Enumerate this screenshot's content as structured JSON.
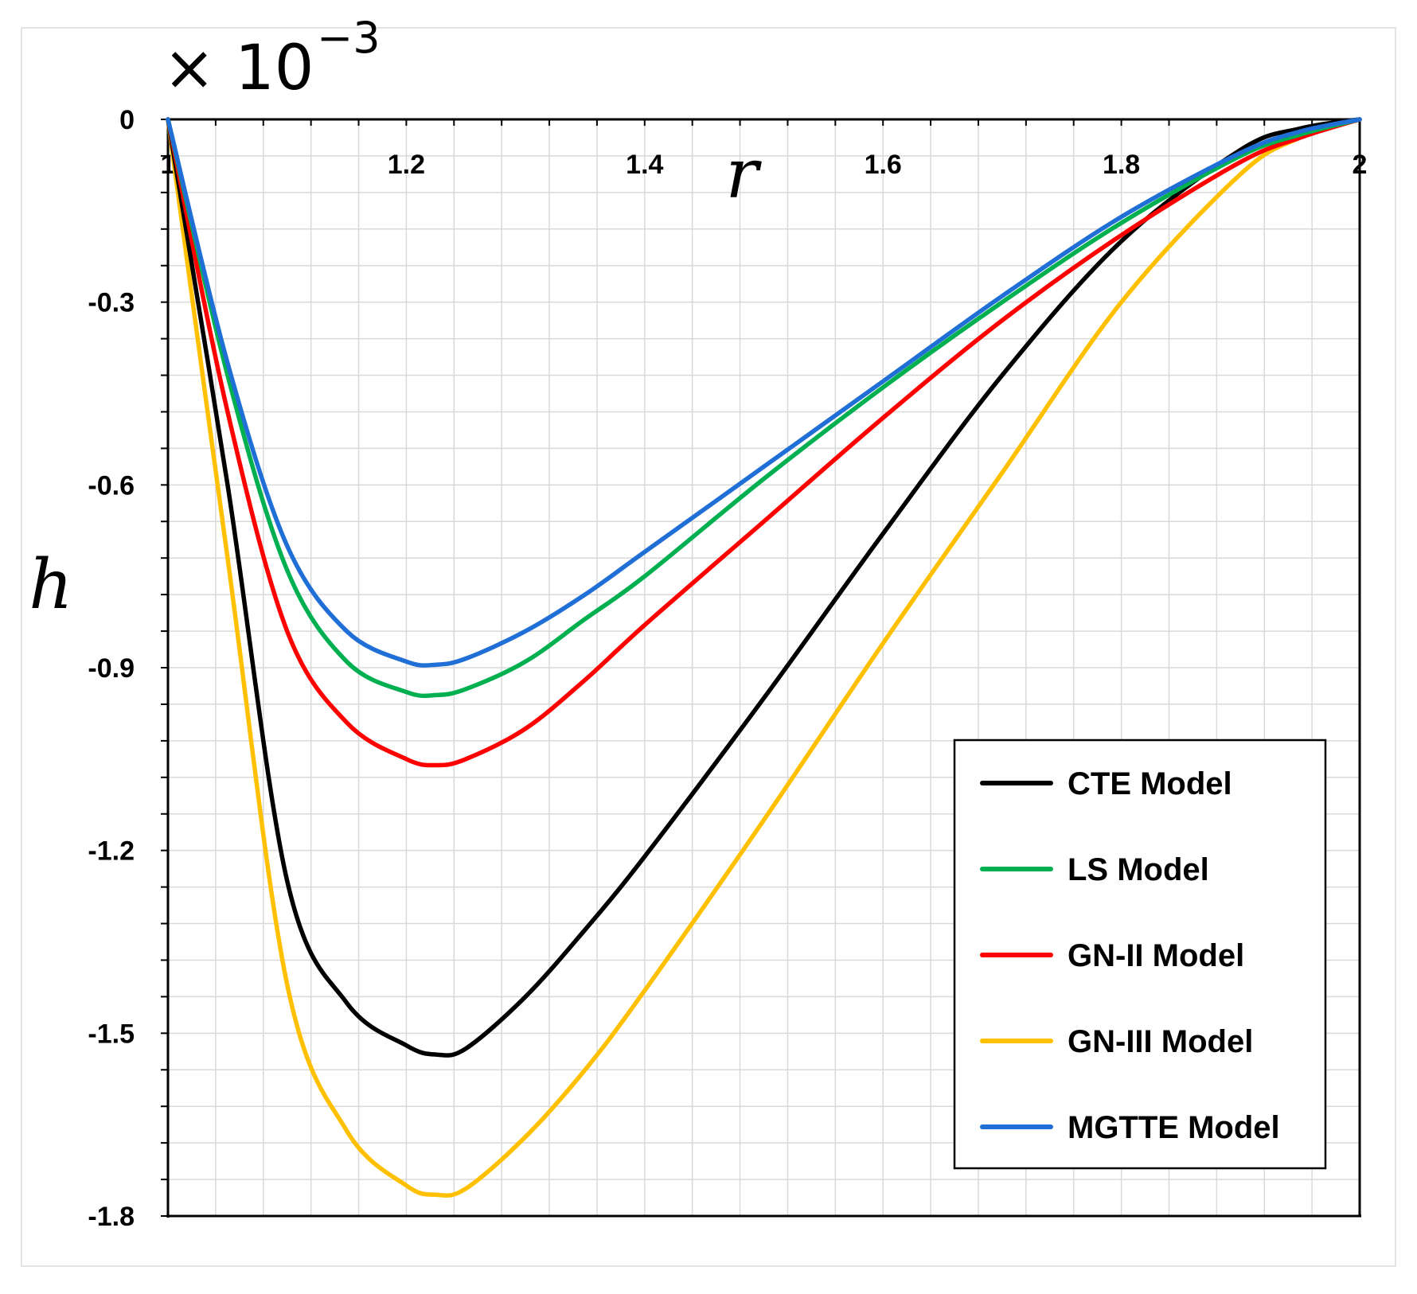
{
  "chart_data": {
    "type": "line",
    "xlabel": "r",
    "ylabel": "h",
    "scale_note": {
      "base": "× 10",
      "exponent": "−3"
    },
    "xlim": [
      1,
      2
    ],
    "ylim": [
      -1.8,
      0
    ],
    "x_ticks": [
      1,
      1.2,
      1.4,
      1.6,
      1.8,
      2
    ],
    "x_tick_labels": [
      "1",
      "1.2",
      "1.4",
      "1.6",
      "1.8",
      "2"
    ],
    "y_ticks": [
      0,
      -0.3,
      -0.6,
      -0.9,
      -1.2,
      -1.5,
      -1.8
    ],
    "y_tick_labels": [
      "0",
      "-0.3",
      "-0.6",
      "-0.9",
      "-1.2",
      "-1.5",
      "-1.8"
    ],
    "x_axis_position": "top (at h = 0)",
    "grid": true,
    "legend_position": "bottom-right",
    "x": [
      1.0,
      1.05,
      1.1,
      1.15,
      1.2,
      1.225,
      1.25,
      1.3,
      1.35,
      1.4,
      1.5,
      1.6,
      1.7,
      1.8,
      1.9,
      1.95,
      2.0
    ],
    "series": [
      {
        "name": "CTE Model",
        "color": "#000000",
        "values": [
          0,
          -0.6,
          -1.25,
          -1.45,
          -1.52,
          -1.535,
          -1.525,
          -1.44,
          -1.33,
          -1.21,
          -0.95,
          -0.68,
          -0.42,
          -0.2,
          -0.05,
          -0.015,
          0
        ]
      },
      {
        "name": "LS Model",
        "color": "#00b050",
        "values": [
          0,
          -0.42,
          -0.74,
          -0.89,
          -0.94,
          -0.945,
          -0.935,
          -0.89,
          -0.82,
          -0.75,
          -0.59,
          -0.44,
          -0.3,
          -0.17,
          -0.06,
          -0.025,
          0
        ]
      },
      {
        "name": "GN-II Model",
        "color": "#ff0000",
        "values": [
          0,
          -0.48,
          -0.84,
          -0.99,
          -1.05,
          -1.06,
          -1.05,
          -1.0,
          -0.92,
          -0.83,
          -0.66,
          -0.49,
          -0.33,
          -0.19,
          -0.07,
          -0.03,
          0
        ]
      },
      {
        "name": "GN-III Model",
        "color": "#ffc000",
        "values": [
          0,
          -0.72,
          -1.42,
          -1.66,
          -1.75,
          -1.765,
          -1.755,
          -1.67,
          -1.56,
          -1.43,
          -1.15,
          -0.86,
          -0.58,
          -0.3,
          -0.09,
          -0.03,
          0
        ]
      },
      {
        "name": "MGTTE Model",
        "color": "#1f6fd6",
        "values": [
          0,
          -0.4,
          -0.7,
          -0.84,
          -0.89,
          -0.895,
          -0.885,
          -0.84,
          -0.78,
          -0.71,
          -0.57,
          -0.43,
          -0.29,
          -0.16,
          -0.055,
          -0.02,
          0
        ]
      }
    ]
  }
}
